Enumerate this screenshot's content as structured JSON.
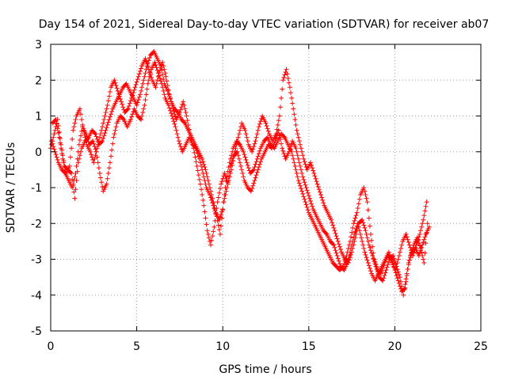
{
  "chart_data": {
    "type": "scatter",
    "title": "Day 154 of 2021, Sidereal Day-to-day VTEC variation (SDTVAR) for receiver ab07",
    "xlabel": "GPS time / hours",
    "ylabel": "SDTVAR / TECUs",
    "xlim": [
      0,
      25
    ],
    "ylim": [
      -5,
      3
    ],
    "xticks": [
      "0",
      "5",
      "10",
      "15",
      "20",
      "25"
    ],
    "yticks": [
      "3",
      "2",
      "1",
      "0",
      "-1",
      "-2",
      "-3",
      "-4",
      "-5"
    ],
    "grid": true,
    "marker": "+",
    "series": [
      {
        "name": "ab07",
        "color": "#ff0000",
        "x": [
          0.0,
          0.2,
          0.4,
          0.6,
          0.8,
          1.0,
          1.2,
          1.4,
          1.6,
          1.8,
          2.0,
          2.2,
          2.4,
          2.6,
          2.8,
          3.0,
          3.2,
          3.4,
          3.6,
          3.8,
          4.0,
          4.2,
          4.4,
          4.6,
          4.8,
          5.0,
          5.2,
          5.4,
          5.6,
          5.8,
          6.0,
          6.2,
          6.4,
          6.6,
          6.8,
          7.0,
          7.2,
          7.4,
          7.6,
          7.8,
          8.0,
          8.2,
          8.4,
          8.6,
          8.8,
          9.0,
          9.2,
          9.4,
          9.6,
          9.8,
          10.0,
          10.2,
          10.4,
          10.6,
          10.8,
          11.0,
          11.2,
          11.4,
          11.6,
          11.8,
          12.0,
          12.2,
          12.4,
          12.6,
          12.8,
          13.0,
          13.2,
          13.4,
          13.6,
          13.8,
          14.0,
          14.2,
          14.4,
          14.6,
          14.8,
          15.0,
          15.2,
          15.4,
          15.6,
          15.8,
          16.0,
          16.2,
          16.4,
          16.6,
          16.8,
          17.0,
          17.2,
          17.4,
          17.6,
          17.8,
          18.0,
          18.2,
          18.4,
          18.6,
          18.8,
          19.0,
          19.2,
          19.4,
          19.6,
          19.8,
          20.0,
          20.2,
          20.4,
          20.6,
          20.8,
          21.0,
          21.2,
          21.4,
          21.6,
          21.8,
          22.0
        ],
        "y": [
          0.1,
          0.5,
          0.9,
          0.2,
          -0.4,
          -0.5,
          -0.6,
          -1.3,
          -0.3,
          0.1,
          0.3,
          0.4,
          0.6,
          0.5,
          0.2,
          0.3,
          0.6,
          0.9,
          1.2,
          1.4,
          1.6,
          1.8,
          1.9,
          1.7,
          1.5,
          1.3,
          1.6,
          2.0,
          2.4,
          2.7,
          2.8,
          2.6,
          2.4,
          1.9,
          1.7,
          1.4,
          1.2,
          1.1,
          0.9,
          0.8,
          0.6,
          0.4,
          0.2,
          0.0,
          -0.2,
          -0.5,
          -0.9,
          -1.3,
          -1.7,
          -1.9,
          -1.6,
          -0.8,
          -0.3,
          0.1,
          0.3,
          0.2,
          0.0,
          -0.3,
          -0.6,
          -0.5,
          -0.2,
          0.1,
          0.3,
          0.4,
          0.2,
          0.1,
          0.3,
          0.5,
          0.4,
          0.2,
          0.0,
          -0.4,
          -0.8,
          -1.1,
          -1.4,
          -1.7,
          -1.9,
          -2.1,
          -2.3,
          -2.5,
          -2.7,
          -2.9,
          -3.1,
          -3.2,
          -3.3,
          -3.2,
          -2.9,
          -2.5,
          -2.0,
          -1.7,
          -1.2,
          -1.0,
          -1.4,
          -2.3,
          -3.0,
          -3.3,
          -3.4,
          -3.1,
          -2.9,
          -3.0,
          -3.3,
          -3.6,
          -3.9,
          -3.8,
          -3.1,
          -2.8,
          -2.7,
          -2.9,
          -2.6,
          -2.3,
          -2.1
        ]
      },
      {
        "name": "ab07",
        "color": "#ff0000",
        "x": [
          0.1,
          0.3,
          0.5,
          0.7,
          0.9,
          1.1,
          1.3,
          1.5,
          1.7,
          1.9,
          2.1,
          2.3,
          2.5,
          2.7,
          2.9,
          3.1,
          3.3,
          3.5,
          3.7,
          3.9,
          4.1,
          4.3,
          4.5,
          4.7,
          4.9,
          5.1,
          5.3,
          5.5,
          5.7,
          5.9,
          6.1,
          6.3,
          6.5,
          6.7,
          6.9,
          7.1,
          7.3,
          7.5,
          7.7,
          7.9,
          8.1,
          8.3,
          8.5,
          8.7,
          8.9,
          9.1,
          9.3,
          9.5,
          9.7,
          9.9,
          10.1,
          10.3,
          10.5,
          10.7,
          10.9,
          11.1,
          11.3,
          11.5,
          11.7,
          11.9,
          12.1,
          12.3,
          12.5,
          12.7,
          12.9,
          13.1,
          13.3,
          13.5,
          13.7,
          13.9,
          14.1,
          14.3,
          14.5,
          14.7,
          14.9,
          15.1,
          15.3,
          15.5,
          15.7,
          15.9,
          16.1,
          16.3,
          16.5,
          16.7,
          16.9,
          17.1,
          17.3,
          17.5,
          17.7,
          17.9,
          18.1,
          18.3,
          18.5,
          18.7,
          18.9,
          19.1,
          19.3,
          19.5,
          19.7,
          19.9,
          20.1,
          20.3,
          20.5,
          20.7,
          20.9,
          21.1,
          21.3,
          21.5,
          21.7,
          21.9
        ],
        "y": [
          0.8,
          0.9,
          0.4,
          -0.2,
          -0.6,
          -0.4,
          0.6,
          1.0,
          1.2,
          0.6,
          0.2,
          0.0,
          -0.3,
          0.1,
          0.5,
          0.9,
          1.3,
          1.8,
          2.0,
          1.7,
          1.4,
          1.1,
          1.2,
          1.5,
          1.8,
          2.1,
          2.4,
          2.6,
          2.3,
          2.0,
          1.8,
          2.2,
          2.5,
          2.1,
          1.6,
          1.2,
          0.9,
          1.1,
          1.4,
          1.0,
          0.5,
          0.1,
          -0.4,
          -0.9,
          -1.5,
          -2.2,
          -2.6,
          -2.1,
          -1.4,
          -0.9,
          -0.6,
          -0.9,
          -0.5,
          0.0,
          0.4,
          0.8,
          0.6,
          0.2,
          0.0,
          0.3,
          0.7,
          1.0,
          0.8,
          0.5,
          0.3,
          0.5,
          1.0,
          2.0,
          2.3,
          1.8,
          1.2,
          0.6,
          0.2,
          -0.2,
          -0.5,
          -0.3,
          -0.6,
          -0.9,
          -1.2,
          -1.5,
          -1.7,
          -1.9,
          -2.2,
          -2.5,
          -2.8,
          -3.0,
          -3.1,
          -2.8,
          -2.4,
          -2.0,
          -1.9,
          -2.2,
          -2.6,
          -2.9,
          -3.2,
          -3.5,
          -3.6,
          -3.3,
          -3.0,
          -2.9,
          -3.2,
          -3.5,
          -4.0,
          -3.4,
          -2.9,
          -2.6,
          -2.4,
          -2.7,
          -3.1,
          -2.0
        ]
      },
      {
        "name": "ab07",
        "color": "#ff0000",
        "x": [
          0.05,
          0.25,
          0.45,
          0.65,
          0.85,
          1.05,
          1.25,
          1.45,
          1.65,
          1.85,
          2.05,
          2.25,
          2.45,
          2.65,
          2.85,
          3.05,
          3.25,
          3.45,
          3.65,
          3.85,
          4.05,
          4.25,
          4.45,
          4.65,
          4.85,
          5.05,
          5.25,
          5.45,
          5.65,
          5.85,
          6.05,
          6.25,
          6.45,
          6.65,
          6.85,
          7.05,
          7.25,
          7.45,
          7.65,
          7.85,
          8.05,
          8.25,
          8.45,
          8.65,
          8.85,
          9.05,
          9.25,
          9.45,
          9.65,
          9.85,
          10.05,
          10.25,
          10.45,
          10.65,
          10.85,
          11.05,
          11.25,
          11.45,
          11.65,
          11.85,
          12.05,
          12.25,
          12.45,
          12.65,
          12.85,
          13.05,
          13.25,
          13.45,
          13.65,
          13.85,
          14.05,
          14.25,
          14.45,
          14.65,
          14.85,
          15.05,
          15.25,
          15.45,
          15.65,
          15.85,
          16.05,
          16.25,
          16.45,
          16.65,
          16.85,
          17.05,
          17.25,
          17.45,
          17.65,
          17.85,
          18.05,
          18.25,
          18.45,
          18.65,
          18.85,
          19.05,
          19.25,
          19.45,
          19.65,
          19.85,
          20.05,
          20.25,
          20.45,
          20.65,
          20.85,
          21.05,
          21.25,
          21.45,
          21.65,
          21.85
        ],
        "y": [
          0.3,
          0.0,
          -0.3,
          -0.5,
          -0.6,
          -0.8,
          -1.0,
          -0.6,
          0.2,
          0.7,
          0.5,
          0.2,
          0.3,
          0.0,
          -0.6,
          -1.1,
          -0.9,
          -0.3,
          0.4,
          0.8,
          1.0,
          0.9,
          0.7,
          0.9,
          1.2,
          1.0,
          0.9,
          1.3,
          1.9,
          2.3,
          2.5,
          2.2,
          1.9,
          1.5,
          1.3,
          1.0,
          0.7,
          0.3,
          0.0,
          0.2,
          0.4,
          0.2,
          0.1,
          -0.2,
          -0.6,
          -1.0,
          -1.2,
          -1.5,
          -1.8,
          -2.3,
          -1.4,
          -1.0,
          -0.4,
          -0.1,
          0.0,
          -0.4,
          -0.8,
          -1.0,
          -1.1,
          -0.8,
          -0.5,
          -0.2,
          0.0,
          0.2,
          0.1,
          0.3,
          0.6,
          0.1,
          -0.2,
          0.0,
          0.3,
          0.1,
          -0.3,
          -0.7,
          -1.0,
          -1.3,
          -1.6,
          -1.8,
          -2.0,
          -2.2,
          -2.3,
          -2.5,
          -2.6,
          -2.9,
          -3.2,
          -3.3,
          -3.1,
          -2.7,
          -2.3,
          -2.0,
          -2.4,
          -2.8,
          -3.1,
          -3.4,
          -3.6,
          -3.4,
          -3.2,
          -3.0,
          -2.8,
          -3.1,
          -3.3,
          -2.9,
          -2.5,
          -2.3,
          -2.6,
          -2.9,
          -2.6,
          -2.3,
          -1.9,
          -1.4
        ]
      }
    ]
  }
}
